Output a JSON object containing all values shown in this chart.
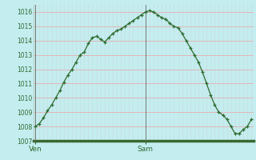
{
  "y_values": [
    1008.0,
    1008.2,
    1008.6,
    1009.1,
    1009.5,
    1010.0,
    1010.5,
    1011.1,
    1011.6,
    1012.0,
    1012.5,
    1013.0,
    1013.2,
    1013.8,
    1014.2,
    1014.3,
    1014.1,
    1013.9,
    1014.2,
    1014.5,
    1014.7,
    1014.8,
    1015.0,
    1015.2,
    1015.4,
    1015.6,
    1015.8,
    1016.0,
    1016.1,
    1016.0,
    1015.8,
    1015.6,
    1015.5,
    1015.2,
    1015.0,
    1014.9,
    1014.5,
    1014.0,
    1013.5,
    1013.0,
    1012.5,
    1011.8,
    1011.0,
    1010.2,
    1009.5,
    1009.0,
    1008.8,
    1008.5,
    1008.0,
    1007.5,
    1007.5,
    1007.8,
    1008.0,
    1008.5
  ],
  "ven_idx": 0,
  "sam_idx": 27,
  "ylim_min": 1007,
  "ylim_max": 1016.5,
  "yticks": [
    1007,
    1008,
    1009,
    1010,
    1011,
    1012,
    1013,
    1014,
    1015,
    1016
  ],
  "line_color": "#2e6b2e",
  "marker_color": "#2e6b2e",
  "bg_color": "#c4edf0",
  "grid_red_color": "#e8aaaa",
  "grid_vert_color": "#c8d8d8",
  "tick_label_color": "#2e6b2e",
  "bottom_bar_color": "#3a6830",
  "vline_color": "#777777"
}
